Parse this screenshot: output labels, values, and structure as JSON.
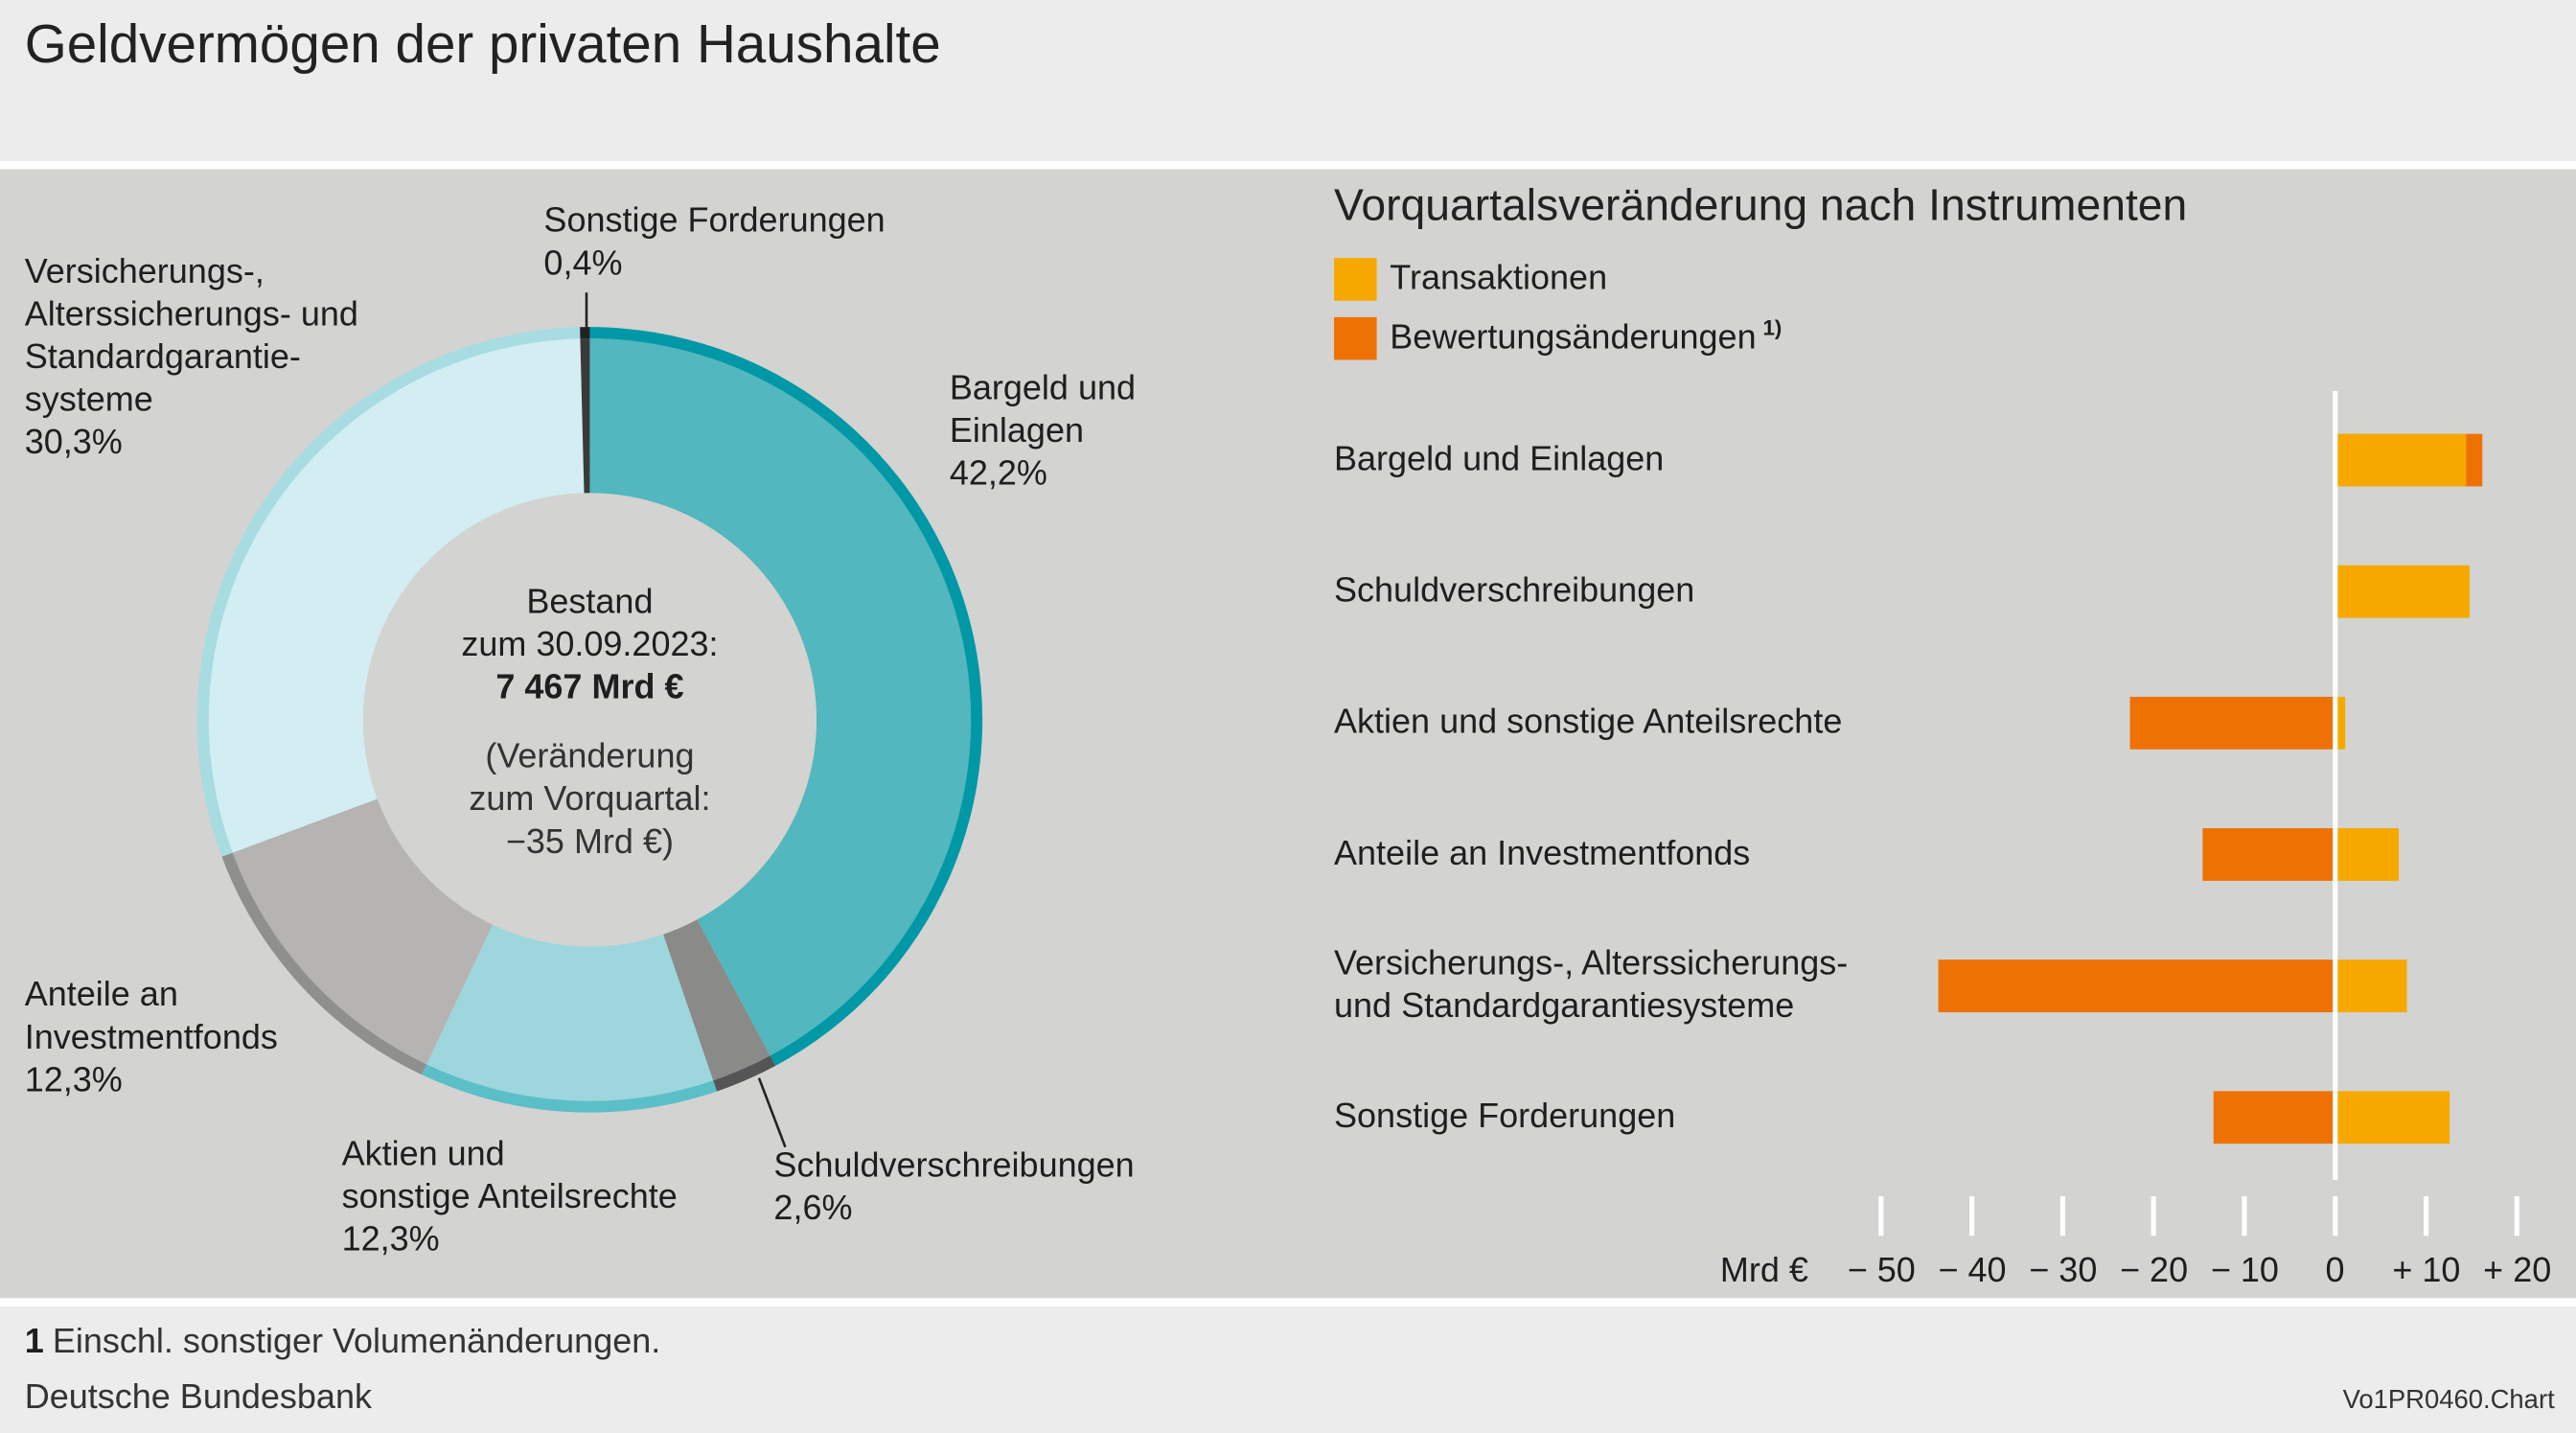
{
  "title": "Geldvermögen der privaten Haushalte",
  "chart_data": [
    {
      "type": "donut",
      "categories": [
        "Bargeld und\nEinlagen",
        "Schuldverschreibungen",
        "Aktien und\nsonstige Anteilsrechte",
        "Anteile an\nInvestmentfonds",
        "Versicherungs-,\nAlterssicherungs- und\nStandardgarantie-\nsysteme",
        "Sonstige Forderungen"
      ],
      "values": [
        42.2,
        2.6,
        12.3,
        12.3,
        30.3,
        0.4
      ],
      "value_labels": [
        "42,2%",
        "2,6%",
        "12,3%",
        "12,3%",
        "30,3%",
        "0,4%"
      ],
      "colors": [
        "#52b7be",
        "#8a8a89",
        "#9dd6dd",
        "#b5b4b2",
        "#d2eef2",
        "#3a3a3a"
      ],
      "rim_colors": [
        "#0098a6",
        "#555555",
        "#5bbfc8",
        "#8f8f8d",
        "#a6dce2",
        "#222222"
      ],
      "center_label": "Bestand\nzum 30.09.2023:",
      "center_value": "7 467 Mrd €",
      "center_note": "(Veränderung\nzum Vorquartal:\n−35 Mrd €)"
    },
    {
      "type": "stacked_bar_horizontal",
      "title": "Vorquartalsveränderung nach Instrumenten",
      "categories": [
        "Bargeld und Einlagen",
        "Schuldverschreibungen",
        "Aktien und sonstige Anteilsrechte",
        "Anteile an Investmentfonds",
        "Versicherungs-, Alterssicherungs-\nund Standardgarantiesysteme",
        "Sonstige Forderungen"
      ],
      "series": [
        {
          "name": "Transaktionen",
          "color": "#f6a800",
          "values": [
            14.4,
            14.8,
            1.1,
            7.0,
            7.9,
            12.6
          ]
        },
        {
          "name": "Bewertungsänderungen",
          "footnote_marker": "1)",
          "color": "#ee7203",
          "values": [
            1.8,
            0,
            -22.6,
            -14.6,
            -43.7,
            -13.4
          ]
        }
      ],
      "xlabel": "Mrd €",
      "xlim": [
        -50,
        20
      ],
      "xticks": [
        {
          "value": -50,
          "label": "− 50"
        },
        {
          "value": -40,
          "label": "− 40"
        },
        {
          "value": -30,
          "label": "− 30"
        },
        {
          "value": -20,
          "label": "− 20"
        },
        {
          "value": -10,
          "label": "− 10"
        },
        0,
        {
          "value": 10,
          "label": "+ 10"
        },
        {
          "value": 20,
          "label": "+ 20"
        }
      ]
    }
  ],
  "footnote": {
    "marker": "1",
    "text": "Einschl. sonstiger Volumenänderungen."
  },
  "source": "Deutsche Bundesbank",
  "code": "Vo1PR0460.Chart"
}
